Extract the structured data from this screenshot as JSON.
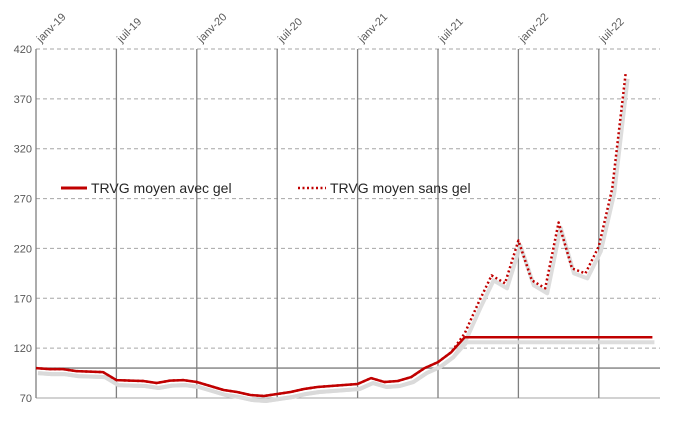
{
  "chart_data": {
    "type": "line",
    "title": "",
    "xlabel": "",
    "ylabel": "",
    "x_tick_labels": [
      "janv-19",
      "juil-19",
      "janv-20",
      "juil-20",
      "janv-21",
      "juil-21",
      "janv-22",
      "juil-22"
    ],
    "y_tick_labels": [
      "70",
      "120",
      "170",
      "220",
      "270",
      "320",
      "370",
      "420"
    ],
    "ylim": [
      70,
      420
    ],
    "x_range": [
      "2019-01",
      "2022-12"
    ],
    "reference_line_value": 100,
    "grid": {
      "horizontal": "dashed",
      "vertical": "solid at tick labels"
    },
    "legend_position": "middle-left",
    "colors": {
      "series": "#c00000",
      "grid_h": "#a6a6a6",
      "grid_v": "#7f7f7f",
      "baseline": "#7f7f7f",
      "shadow": "#d9d9d9",
      "tick_text": "#595959"
    },
    "series": [
      {
        "name": "TRVG moyen avec gel",
        "style": "solid",
        "x": [
          "2019-01",
          "2019-02",
          "2019-03",
          "2019-04",
          "2019-05",
          "2019-06",
          "2019-07",
          "2019-08",
          "2019-09",
          "2019-10",
          "2019-11",
          "2019-12",
          "2020-01",
          "2020-02",
          "2020-03",
          "2020-04",
          "2020-05",
          "2020-06",
          "2020-07",
          "2020-08",
          "2020-09",
          "2020-10",
          "2020-11",
          "2020-12",
          "2021-01",
          "2021-02",
          "2021-03",
          "2021-04",
          "2021-05",
          "2021-06",
          "2021-07",
          "2021-08",
          "2021-09",
          "2021-10",
          "2021-11",
          "2021-12",
          "2022-01",
          "2022-02",
          "2022-03",
          "2022-04",
          "2022-05",
          "2022-06",
          "2022-07",
          "2022-08",
          "2022-09",
          "2022-10",
          "2022-11"
        ],
        "values": [
          100,
          99,
          99,
          97,
          96.5,
          96,
          88,
          87.5,
          87,
          85,
          87.5,
          88,
          86,
          82,
          78,
          76,
          73,
          72,
          74,
          76,
          79,
          81,
          82,
          83,
          84,
          90,
          86,
          87,
          91,
          100,
          106,
          116,
          131,
          131,
          131,
          131,
          131,
          131,
          131,
          131,
          131,
          131,
          131,
          131,
          131,
          131,
          131
        ]
      },
      {
        "name": "TRVG moyen sans gel",
        "style": "dotted",
        "x": [
          "2019-01",
          "2019-02",
          "2019-03",
          "2019-04",
          "2019-05",
          "2019-06",
          "2019-07",
          "2019-08",
          "2019-09",
          "2019-10",
          "2019-11",
          "2019-12",
          "2020-01",
          "2020-02",
          "2020-03",
          "2020-04",
          "2020-05",
          "2020-06",
          "2020-07",
          "2020-08",
          "2020-09",
          "2020-10",
          "2020-11",
          "2020-12",
          "2021-01",
          "2021-02",
          "2021-03",
          "2021-04",
          "2021-05",
          "2021-06",
          "2021-07",
          "2021-08",
          "2021-09",
          "2021-10",
          "2021-11",
          "2021-12",
          "2022-01",
          "2022-02",
          "2022-03",
          "2022-04",
          "2022-05",
          "2022-06",
          "2022-07",
          "2022-08",
          "2022-09",
          "2022-10",
          "2022-11"
        ],
        "values": [
          100,
          99,
          99,
          97,
          96.5,
          96,
          88,
          87.5,
          87,
          85,
          87.5,
          88,
          86,
          82,
          78,
          76,
          73,
          72,
          74,
          76,
          79,
          81,
          82,
          83,
          84,
          90,
          86,
          87,
          91,
          100,
          106,
          116,
          135,
          165,
          193,
          185,
          228,
          188,
          180,
          246,
          200,
          195,
          222,
          280,
          395,
          null,
          null
        ]
      }
    ]
  }
}
